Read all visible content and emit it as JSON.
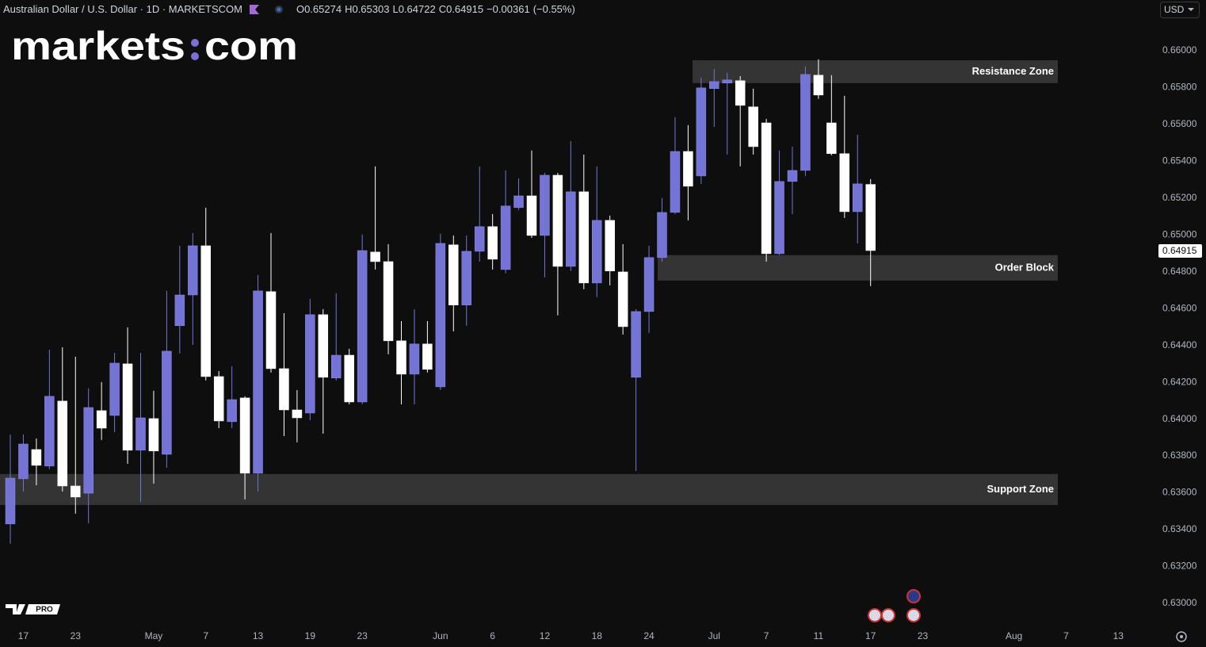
{
  "header": {
    "symbol": "Australian Dollar / U.S. Dollar · 1D · MARKETSCOM",
    "ohlc": [
      {
        "label": "O",
        "value": 0.65274
      },
      {
        "label": "H",
        "value": 0.65303
      },
      {
        "label": "L",
        "value": 0.64722
      },
      {
        "label": "C",
        "value": 0.64915
      }
    ],
    "change": {
      "value": -0.00361,
      "label": "−0.00361"
    },
    "change_percent": {
      "value": -0.55,
      "label": "(−0.55%)"
    }
  },
  "currency": "USD",
  "logo": {
    "left": "markets",
    "right": "com"
  },
  "badge": "PRO",
  "chart_data": {
    "type": "candlestick",
    "categories": [
      null,
      "17",
      null,
      null,
      null,
      "23",
      null,
      null,
      null,
      null,
      null,
      "May",
      null,
      null,
      null,
      "7",
      null,
      null,
      null,
      "13",
      null,
      null,
      null,
      "19",
      null,
      null,
      null,
      "23",
      null,
      null,
      null,
      null,
      null,
      "Jun",
      null,
      null,
      null,
      "6",
      null,
      null,
      null,
      "12",
      null,
      null,
      null,
      "18",
      null,
      null,
      null,
      "24",
      null,
      null,
      null,
      null,
      "Jul",
      null,
      null,
      null,
      "7",
      null,
      null,
      null,
      "11",
      null,
      null,
      null,
      "17",
      null,
      null,
      null,
      "23",
      null,
      null,
      null,
      null,
      null,
      null,
      "Aug",
      null,
      null,
      null,
      "7",
      null,
      null,
      null,
      "13"
    ],
    "open": [
      0.63431,
      0.63676,
      0.63835,
      0.63745,
      0.64098,
      0.63637,
      0.63598,
      0.64046,
      0.6402,
      0.643,
      0.63831,
      0.64003,
      0.63809,
      0.64507,
      0.64674,
      0.64941,
      0.64231,
      0.63986,
      0.64115,
      0.63706,
      0.64692,
      0.64274,
      0.6405,
      0.64033,
      0.64567,
      0.64223,
      0.64347,
      0.64093,
      0.64907,
      0.64855,
      0.64425,
      0.64244,
      0.64408,
      0.64175,
      0.64946,
      0.64619,
      0.64911,
      0.65045,
      0.64812,
      0.65148,
      0.65212,
      0.64997,
      0.65324,
      0.64829,
      0.65234,
      0.64739,
      0.65079,
      0.64799,
      0.64227,
      0.64584,
      0.64877,
      0.65122,
      0.65453,
      0.6532,
      0.65794,
      0.65824,
      0.65837,
      0.65695,
      0.65608,
      0.64898,
      0.6529,
      0.6535,
      0.65867,
      0.65608,
      0.65441,
      0.65126,
      0.65274,
      null,
      null,
      null,
      null,
      null,
      null,
      null,
      null,
      null,
      null,
      null,
      null,
      null,
      null,
      null,
      null,
      null,
      null,
      null
    ],
    "high": [
      0.63917,
      0.63917,
      0.63895,
      0.64377,
      0.6439,
      0.64339,
      0.64167,
      0.64201,
      0.6436,
      0.64498,
      0.6436,
      0.64154,
      0.64696,
      0.64941,
      0.6501,
      0.65148,
      0.64261,
      0.64287,
      0.64124,
      0.64782,
      0.6501,
      0.64575,
      0.64158,
      0.64653,
      0.64597,
      0.64683,
      0.64382,
      0.65002,
      0.65372,
      0.6495,
      0.64532,
      0.64597,
      0.64532,
      0.65006,
      0.64997,
      0.64997,
      0.65372,
      0.65113,
      0.6535,
      0.65307,
      0.65458,
      0.65337,
      0.65337,
      0.65509,
      0.65436,
      0.65372,
      0.65105,
      0.6495,
      0.64597,
      0.64941,
      0.652,
      0.65639,
      0.65596,
      0.65854,
      0.65901,
      0.6588,
      0.65862,
      0.65794,
      0.6563,
      0.65458,
      0.65479,
      0.65914,
      0.65953,
      0.65867,
      0.65755,
      0.65544,
      0.65303,
      null,
      null,
      null,
      null,
      null,
      null,
      null,
      null,
      null,
      null,
      null,
      null,
      null,
      null,
      null,
      null,
      null,
      null,
      null
    ],
    "low": [
      0.63323,
      0.63607,
      0.63641,
      0.63728,
      0.63607,
      0.63487,
      0.63435,
      0.63887,
      0.6393,
      0.63758,
      0.63551,
      0.6365,
      0.63736,
      0.64356,
      0.64403,
      0.6421,
      0.63951,
      0.63951,
      0.63564,
      0.63607,
      0.64253,
      0.63908,
      0.63874,
      0.63994,
      0.63921,
      0.6421,
      0.6408,
      0.6408,
      0.64812,
      0.64352,
      0.6408,
      0.6408,
      0.64253,
      0.64158,
      0.64476,
      0.64507,
      0.64855,
      0.64812,
      0.64791,
      0.65135,
      0.64984,
      0.64769,
      0.64563,
      0.64804,
      0.64705,
      0.64662,
      0.64726,
      0.64459,
      0.63719,
      0.64468,
      0.64855,
      0.65113,
      0.65079,
      0.65277,
      0.65587,
      0.65436,
      0.65372,
      0.65436,
      0.64855,
      0.6489,
      0.65113,
      0.6532,
      0.65738,
      0.65432,
      0.65092,
      0.64954,
      0.64722,
      null,
      null,
      null,
      null,
      null,
      null,
      null,
      null,
      null,
      null,
      null,
      null,
      null,
      null,
      null,
      null,
      null,
      null,
      null
    ],
    "close": [
      0.6368,
      0.63865,
      0.63749,
      0.64124,
      0.63637,
      0.63577,
      0.64063,
      0.63951,
      0.64304,
      0.63831,
      0.64007,
      0.63827,
      0.64369,
      0.64674,
      0.64941,
      0.64231,
      0.6399,
      0.64106,
      0.63706,
      0.64696,
      0.64274,
      0.6405,
      0.64007,
      0.64567,
      0.64227,
      0.64347,
      0.64093,
      0.64915,
      0.64855,
      0.64425,
      0.64244,
      0.64408,
      0.6427,
      0.64954,
      0.64619,
      0.64911,
      0.65045,
      0.64868,
      0.65157,
      0.65212,
      0.64997,
      0.65324,
      0.64829,
      0.65234,
      0.64739,
      0.65079,
      0.64804,
      0.64502,
      0.64584,
      0.64877,
      0.65122,
      0.65453,
      0.65264,
      0.65798,
      0.65832,
      0.65841,
      0.65703,
      0.65479,
      0.64898,
      0.6529,
      0.6535,
      0.65871,
      0.65759,
      0.65441,
      0.65126,
      0.65277,
      0.64915,
      null,
      null,
      null,
      null,
      null,
      null,
      null,
      null,
      null,
      null,
      null,
      null,
      null,
      null,
      null,
      null,
      null,
      null,
      null
    ],
    "up_color": "#7474d6",
    "down_color": "#ffffff",
    "ylim": [
      0.62875,
      0.66275
    ],
    "yticks": [
      {
        "value": 0.63,
        "label": "0.63000"
      },
      {
        "value": 0.632,
        "label": "0.63200"
      },
      {
        "value": 0.634,
        "label": "0.63400"
      },
      {
        "value": 0.636,
        "label": "0.63600"
      },
      {
        "value": 0.638,
        "label": "0.63800"
      },
      {
        "value": 0.64,
        "label": "0.64000"
      },
      {
        "value": 0.642,
        "label": "0.64200"
      },
      {
        "value": 0.644,
        "label": "0.64400"
      },
      {
        "value": 0.646,
        "label": "0.64600"
      },
      {
        "value": 0.648,
        "label": "0.64800"
      },
      {
        "value": 0.65,
        "label": "0.65000"
      },
      {
        "value": 0.652,
        "label": "0.65200"
      },
      {
        "value": 0.654,
        "label": "0.65400"
      },
      {
        "value": 0.656,
        "label": "0.65600"
      },
      {
        "value": 0.658,
        "label": "0.65800"
      },
      {
        "value": 0.66,
        "label": "0.66000"
      }
    ],
    "grid": false,
    "last_price": 0.64915,
    "zones": [
      {
        "label": "Resistance Zone",
        "low": 0.65824,
        "high": 0.65948
      },
      {
        "label": "Order Block",
        "low": 0.64752,
        "high": 0.6489
      },
      {
        "label": "Support Zone",
        "low": 0.63534,
        "high": 0.63702
      }
    ]
  }
}
